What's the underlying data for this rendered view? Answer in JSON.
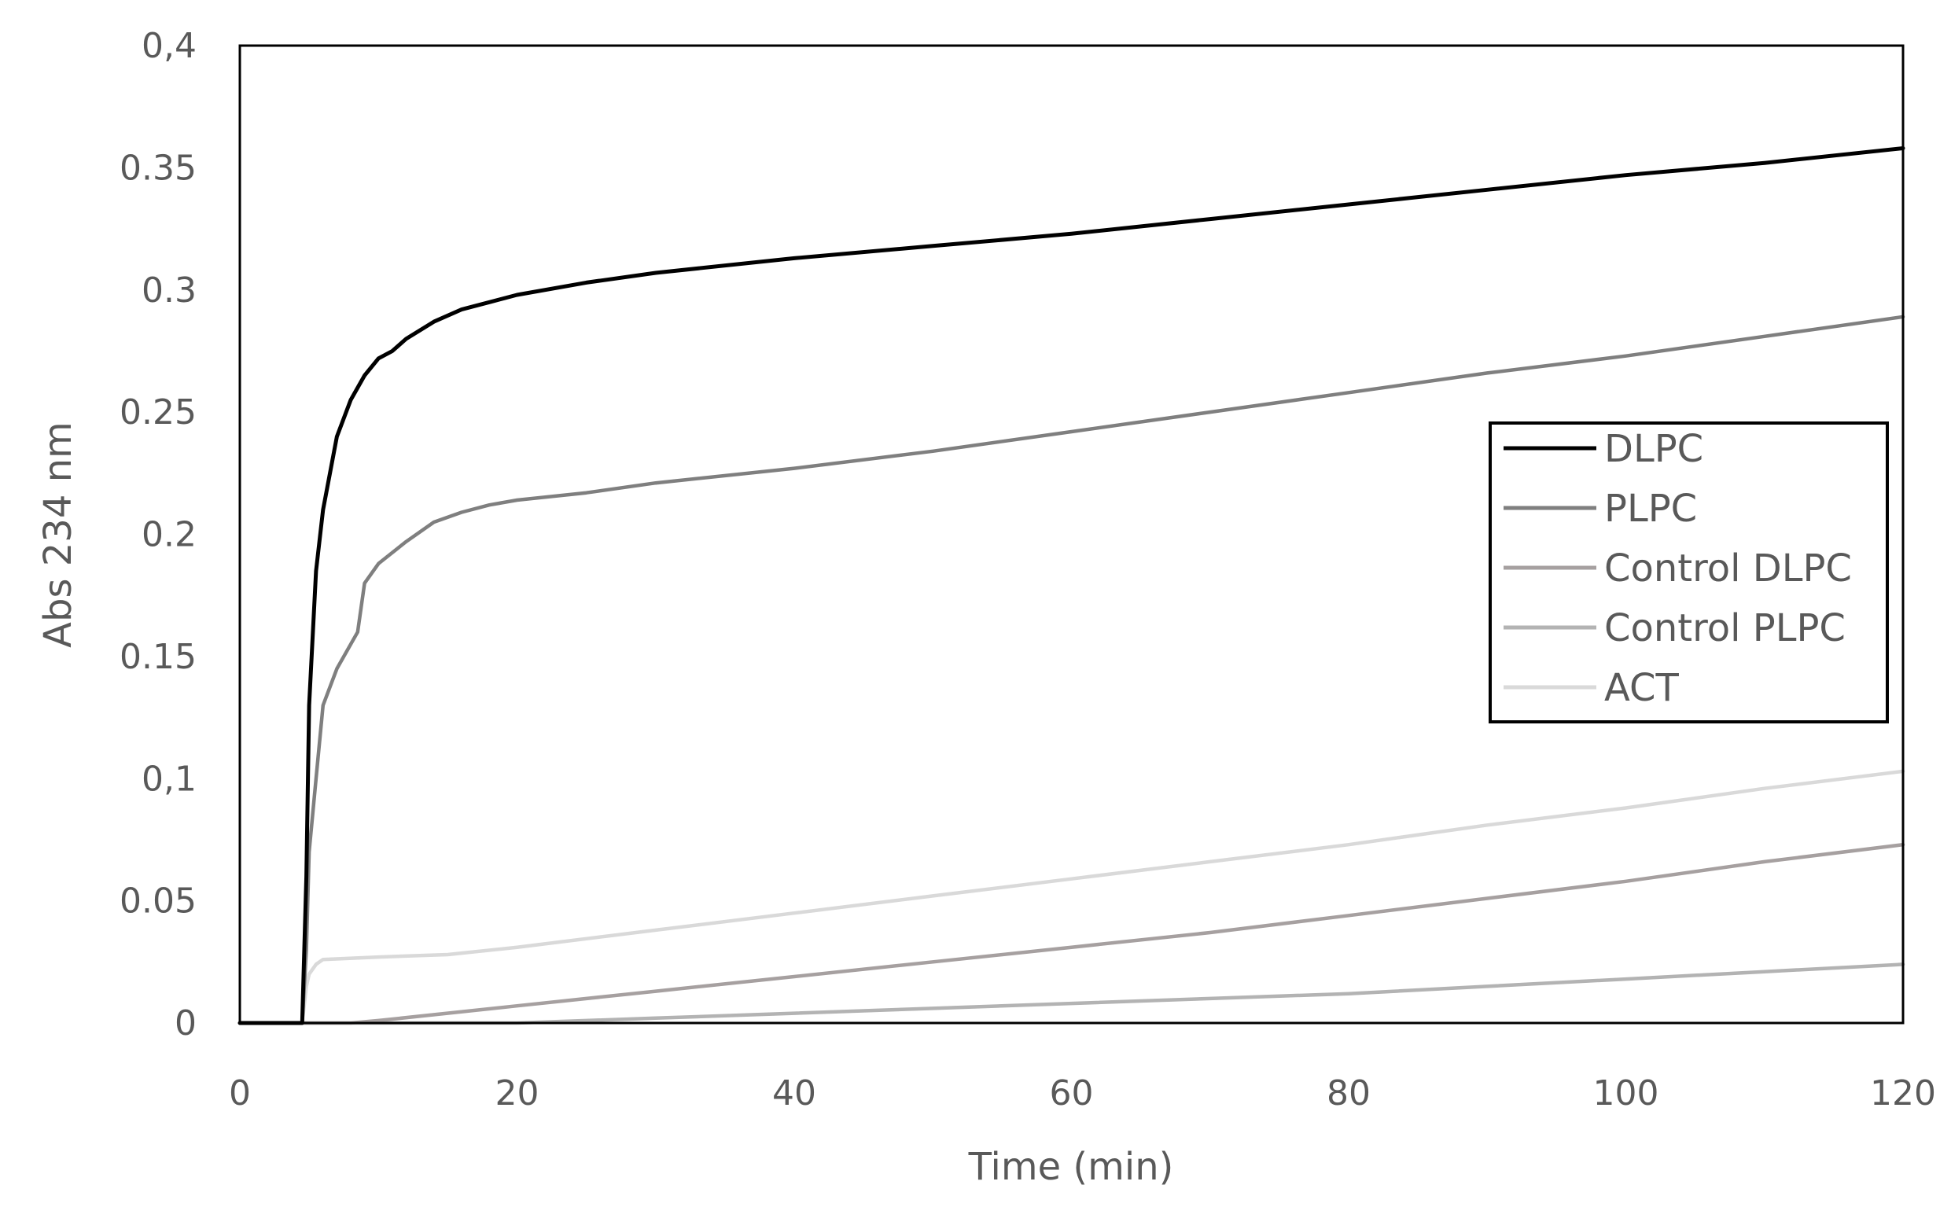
{
  "chart_data": {
    "type": "line",
    "title": "",
    "xlabel": "Time (min)",
    "ylabel": "Abs 234 nm",
    "xlim": [
      0,
      120
    ],
    "ylim": [
      0,
      0.4
    ],
    "x_ticks": [
      {
        "value": 0,
        "label": "0"
      },
      {
        "value": 20,
        "label": "20"
      },
      {
        "value": 40,
        "label": "40"
      },
      {
        "value": 60,
        "label": "60"
      },
      {
        "value": 80,
        "label": "80"
      },
      {
        "value": 100,
        "label": "100"
      },
      {
        "value": 120,
        "label": "120"
      }
    ],
    "y_ticks": [
      {
        "value": 0,
        "label": "0"
      },
      {
        "value": 0.05,
        "label": "0.05"
      },
      {
        "value": 0.1,
        "label": "0,1"
      },
      {
        "value": 0.15,
        "label": "0.15"
      },
      {
        "value": 0.2,
        "label": "0.2"
      },
      {
        "value": 0.25,
        "label": "0.25"
      },
      {
        "value": 0.3,
        "label": "0.3"
      },
      {
        "value": 0.35,
        "label": "0.35"
      },
      {
        "value": 0.4,
        "label": "0,4"
      }
    ],
    "grid": false,
    "legend_position": "right",
    "series": [
      {
        "name": "DLPC",
        "color": "#000000",
        "x": [
          0,
          4.5,
          4.8,
          5,
          5.5,
          6,
          7,
          8,
          9,
          10,
          11,
          12,
          14,
          16,
          18,
          20,
          25,
          30,
          40,
          50,
          60,
          70,
          80,
          90,
          100,
          110,
          120
        ],
        "y": [
          0,
          0,
          0.06,
          0.13,
          0.185,
          0.21,
          0.24,
          0.255,
          0.265,
          0.272,
          0.275,
          0.28,
          0.287,
          0.292,
          0.295,
          0.298,
          0.303,
          0.307,
          0.313,
          0.318,
          0.323,
          0.329,
          0.335,
          0.341,
          0.347,
          0.352,
          0.358
        ]
      },
      {
        "name": "PLPC",
        "color": "#7f7f7f",
        "x": [
          0,
          4.5,
          4.8,
          5,
          5.5,
          6,
          7,
          8,
          8.5,
          9,
          10,
          12,
          14,
          16,
          18,
          20,
          25,
          30,
          40,
          50,
          60,
          70,
          80,
          90,
          100,
          110,
          120
        ],
        "y": [
          0,
          0,
          0.03,
          0.07,
          0.1,
          0.13,
          0.145,
          0.155,
          0.16,
          0.18,
          0.188,
          0.197,
          0.205,
          0.209,
          0.212,
          0.214,
          0.217,
          0.221,
          0.227,
          0.234,
          0.242,
          0.25,
          0.258,
          0.266,
          0.273,
          0.281,
          0.289
        ]
      },
      {
        "name": "Control DLPC",
        "color": "#a6a0a0",
        "x": [
          0,
          8,
          10,
          20,
          30,
          40,
          50,
          60,
          70,
          80,
          90,
          100,
          110,
          120
        ],
        "y": [
          0,
          0,
          0.001,
          0.007,
          0.013,
          0.019,
          0.025,
          0.031,
          0.037,
          0.044,
          0.051,
          0.058,
          0.066,
          0.073
        ]
      },
      {
        "name": "Control PLPC",
        "color": "#b3b3b3",
        "x": [
          0,
          20,
          30,
          40,
          50,
          60,
          70,
          80,
          90,
          100,
          110,
          120
        ],
        "y": [
          0,
          0,
          0.002,
          0.004,
          0.006,
          0.008,
          0.01,
          0.012,
          0.015,
          0.018,
          0.021,
          0.024
        ]
      },
      {
        "name": "ACT",
        "color": "#d9d9d9",
        "x": [
          0,
          4.5,
          4.8,
          5,
          5.5,
          6,
          10,
          15,
          20,
          30,
          40,
          50,
          60,
          70,
          80,
          90,
          100,
          110,
          120
        ],
        "y": [
          0,
          0,
          0.015,
          0.02,
          0.024,
          0.026,
          0.027,
          0.028,
          0.031,
          0.038,
          0.045,
          0.052,
          0.059,
          0.066,
          0.073,
          0.081,
          0.088,
          0.096,
          0.103
        ]
      }
    ]
  }
}
